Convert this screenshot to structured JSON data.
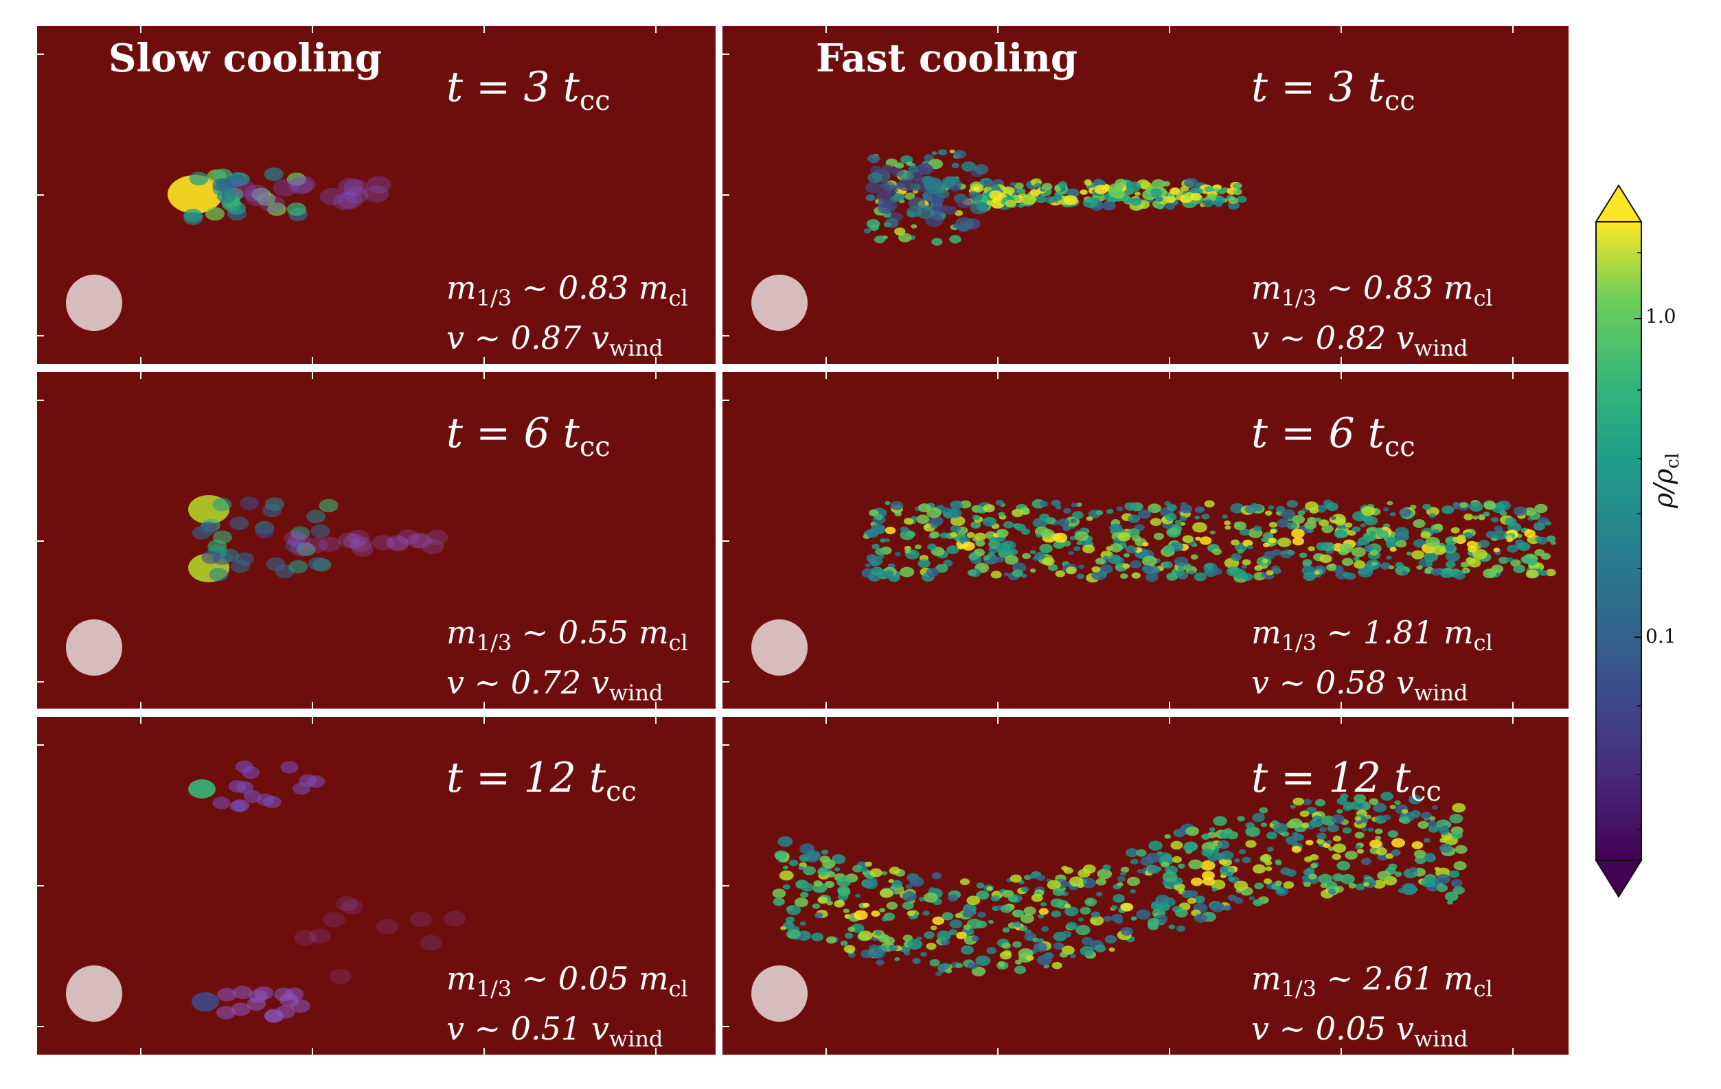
{
  "columns": {
    "left_title": "Slow cooling",
    "right_title": "Fast cooling"
  },
  "panels": [
    {
      "id": "slow-t3",
      "time": "t = 3 t",
      "time_sub": "cc",
      "mass": "m",
      "mass_sub": "1/3",
      "mass_val": " ~ 0.83 m",
      "mass_val_sub": "cl",
      "vel": "v ~ 0.87 v",
      "vel_sub": "wind"
    },
    {
      "id": "fast-t3",
      "time": "t = 3 t",
      "time_sub": "cc",
      "mass": "m",
      "mass_sub": "1/3",
      "mass_val": " ~ 0.83 m",
      "mass_val_sub": "cl",
      "vel": "v ~ 0.82 v",
      "vel_sub": "wind"
    },
    {
      "id": "slow-t6",
      "time": "t = 6 t",
      "time_sub": "cc",
      "mass": "m",
      "mass_sub": "1/3",
      "mass_val": " ~ 0.55 m",
      "mass_val_sub": "cl",
      "vel": "v ~ 0.72 v",
      "vel_sub": "wind"
    },
    {
      "id": "fast-t6",
      "time": "t = 6 t",
      "time_sub": "cc",
      "mass": "m",
      "mass_sub": "1/3",
      "mass_val": " ~ 1.81 m",
      "mass_val_sub": "cl",
      "vel": "v ~ 0.58 v",
      "vel_sub": "wind"
    },
    {
      "id": "slow-t12",
      "time": "t = 12 t",
      "time_sub": "cc",
      "mass": "m",
      "mass_sub": "1/3",
      "mass_val": " ~ 0.05 m",
      "mass_val_sub": "cl",
      "vel": "v ~ 0.51 v",
      "vel_sub": "wind"
    },
    {
      "id": "fast-t12",
      "time": "t = 12 t",
      "time_sub": "cc",
      "mass": "m",
      "mass_sub": "1/3",
      "mass_val": " ~ 2.61 m",
      "mass_val_sub": "cl",
      "vel": "v ~ 0.05 v",
      "vel_sub": "wind"
    }
  ],
  "colorbar": {
    "label": "ρ/ρ",
    "label_sub": "cl",
    "ticks": [
      "1.0",
      "0.1"
    ],
    "colormap": "viridis"
  },
  "colors": {
    "background_gas": "#6e0e0c",
    "initial_cloud": "#d7bcbc"
  }
}
